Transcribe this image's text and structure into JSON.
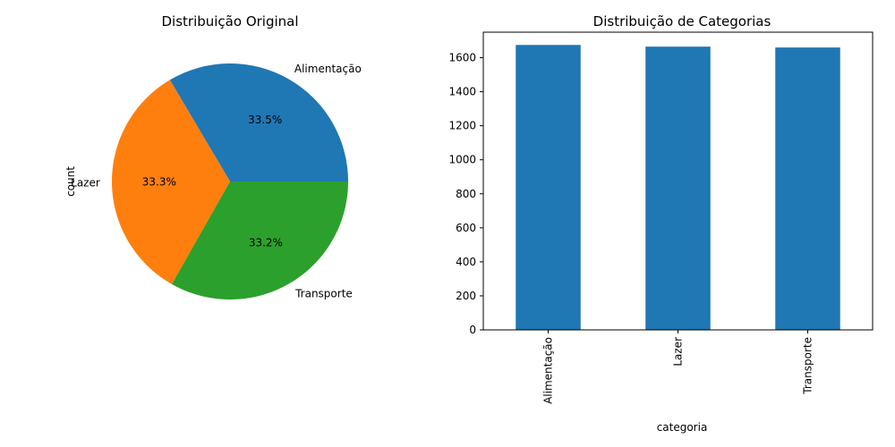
{
  "colors": {
    "series": [
      "#1f77b4",
      "#ff7f0e",
      "#2ca02c"
    ],
    "axes": "#000000",
    "background": "#ffffff"
  },
  "chart_data": [
    {
      "type": "pie",
      "title": "Distribuição Original",
      "ylabel": "count",
      "categories": [
        "Alimentação",
        "Lazer",
        "Transporte"
      ],
      "percent_labels": [
        "33.5%",
        "33.3%",
        "33.2%"
      ],
      "values": [
        33.5,
        33.3,
        33.2
      ],
      "start_angle": 0,
      "direction": "counterclockwise",
      "legend": "none"
    },
    {
      "type": "bar",
      "title": "Distribuição de Categorias",
      "xlabel": "categoria",
      "ylabel": "",
      "categories": [
        "Alimentação",
        "Lazer",
        "Transporte"
      ],
      "values": [
        1675,
        1665,
        1660
      ],
      "ylim": [
        0,
        1750
      ],
      "yticks": [
        0,
        200,
        400,
        600,
        800,
        1000,
        1200,
        1400,
        1600
      ],
      "ytick_labels": [
        "0",
        "200",
        "400",
        "600",
        "800",
        "1000",
        "1200",
        "1400",
        "1600"
      ],
      "xtick_rotation": "vertical",
      "grid": false,
      "legend": "none"
    }
  ]
}
